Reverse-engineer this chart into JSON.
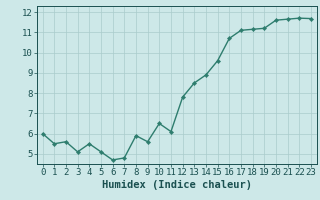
{
  "x": [
    0,
    1,
    2,
    3,
    4,
    5,
    6,
    7,
    8,
    9,
    10,
    11,
    12,
    13,
    14,
    15,
    16,
    17,
    18,
    19,
    20,
    21,
    22,
    23
  ],
  "y": [
    6.0,
    5.5,
    5.6,
    5.1,
    5.5,
    5.1,
    4.7,
    4.8,
    5.9,
    5.6,
    6.5,
    6.1,
    7.8,
    8.5,
    8.9,
    9.6,
    10.7,
    11.1,
    11.15,
    11.2,
    11.6,
    11.65,
    11.7,
    11.68
  ],
  "line_color": "#2e7d6e",
  "marker": "D",
  "marker_size": 2.2,
  "line_width": 1.0,
  "xlabel": "Humidex (Indice chaleur)",
  "xlim": [
    -0.5,
    23.5
  ],
  "ylim": [
    4.5,
    12.3
  ],
  "yticks": [
    5,
    6,
    7,
    8,
    9,
    10,
    11,
    12
  ],
  "xticks": [
    0,
    1,
    2,
    3,
    4,
    5,
    6,
    7,
    8,
    9,
    10,
    11,
    12,
    13,
    14,
    15,
    16,
    17,
    18,
    19,
    20,
    21,
    22,
    23
  ],
  "bg_color": "#cde8e8",
  "grid_color": "#aacccc",
  "tick_color": "#1a5050",
  "label_color": "#1a5050",
  "xlabel_fontsize": 7.5,
  "tick_fontsize": 6.5
}
